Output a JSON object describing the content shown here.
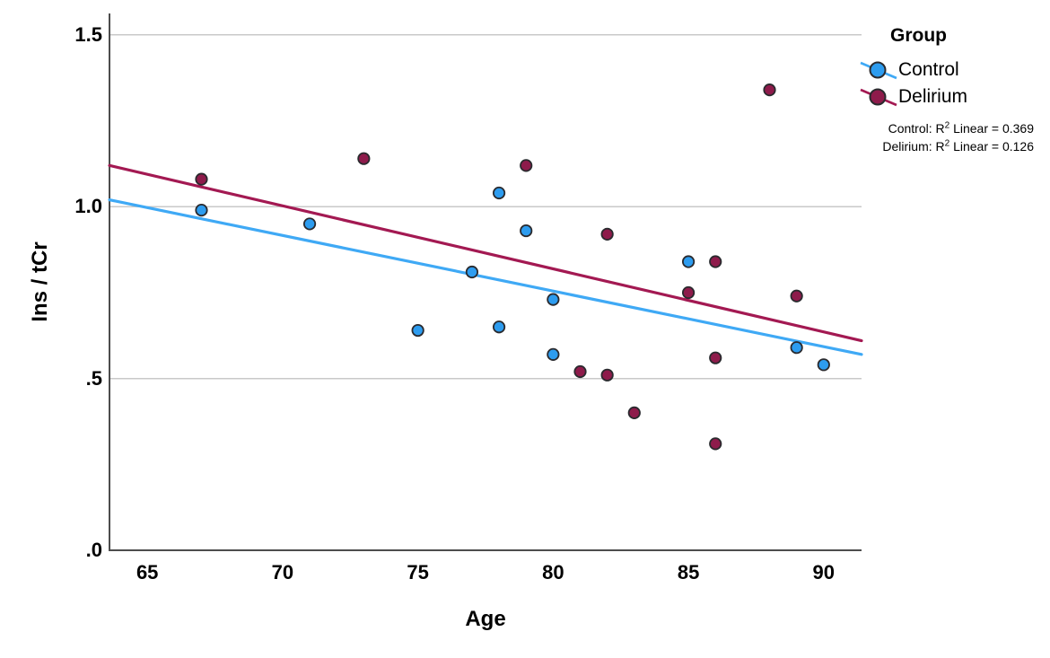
{
  "chart_data": {
    "type": "scatter",
    "title": "",
    "xlabel": "Age",
    "ylabel": "Ins / tCr",
    "xlim": [
      63.6,
      91.4
    ],
    "ylim": [
      0,
      1.5625
    ],
    "x_ticks": [
      {
        "value": 65,
        "label": "65"
      },
      {
        "value": 70,
        "label": "70"
      },
      {
        "value": 75,
        "label": "75"
      },
      {
        "value": 80,
        "label": "80"
      },
      {
        "value": 85,
        "label": "85"
      },
      {
        "value": 90,
        "label": "90"
      }
    ],
    "y_ticks": [
      {
        "value": 0.0,
        "label": ".0"
      },
      {
        "value": 0.5,
        "label": ".5"
      },
      {
        "value": 1.0,
        "label": "1.0"
      },
      {
        "value": 1.5,
        "label": "1.5"
      }
    ],
    "grid": {
      "horizontal": true,
      "vertical": false,
      "color": "#c9c9c9"
    },
    "axis_color": "#4d4d4d",
    "marker_edge_color": "#2a2a2e",
    "legend": {
      "title": "Group",
      "position": "top-right",
      "entries": [
        {
          "label": "Control",
          "marker_color": "#2D9CEF",
          "line_color": "#3FA9F5"
        },
        {
          "label": "Delirium",
          "marker_color": "#8E1B4B",
          "line_color": "#A31952"
        }
      ]
    },
    "annotations": [
      {
        "prefix": "Control: R",
        "sup": "2",
        "suffix": " Linear = 0.369"
      },
      {
        "prefix": "Delirium: R",
        "sup": "2",
        "suffix": " Linear = 0.126"
      }
    ],
    "series": [
      {
        "name": "Control",
        "marker_color": "#2D9CEF",
        "line_color": "#3FA9F5",
        "r2_linear": 0.369,
        "points": [
          [
            67,
            0.99
          ],
          [
            71,
            0.95
          ],
          [
            75,
            0.64
          ],
          [
            77,
            0.81
          ],
          [
            78,
            1.04
          ],
          [
            78,
            0.65
          ],
          [
            79,
            0.93
          ],
          [
            80,
            0.73
          ],
          [
            80,
            0.57
          ],
          [
            85,
            0.84
          ],
          [
            89,
            0.59
          ],
          [
            90,
            0.54
          ]
        ],
        "trend": {
          "x": [
            63.6,
            91.4
          ],
          "y": [
            1.02,
            0.57
          ]
        }
      },
      {
        "name": "Delirium",
        "marker_color": "#8E1B4B",
        "line_color": "#A31952",
        "r2_linear": 0.126,
        "points": [
          [
            67,
            1.08
          ],
          [
            73,
            1.14
          ],
          [
            79,
            1.12
          ],
          [
            81,
            0.52
          ],
          [
            82,
            0.92
          ],
          [
            82,
            0.51
          ],
          [
            83,
            0.4
          ],
          [
            85,
            0.75
          ],
          [
            86,
            0.84
          ],
          [
            86,
            0.56
          ],
          [
            86,
            0.31
          ],
          [
            88,
            1.34
          ],
          [
            89,
            0.74
          ]
        ],
        "trend": {
          "x": [
            63.6,
            91.4
          ],
          "y": [
            1.12,
            0.61
          ]
        }
      }
    ]
  }
}
